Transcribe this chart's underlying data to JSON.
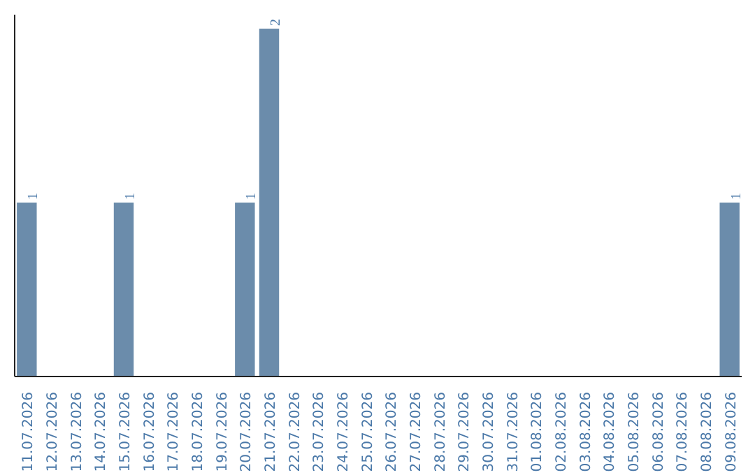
{
  "chart_data": {
    "type": "bar",
    "categories": [
      "11.07.2026",
      "12.07.2026",
      "13.07.2026",
      "14.07.2026",
      "15.07.2026",
      "16.07.2026",
      "17.07.2026",
      "18.07.2026",
      "19.07.2026",
      "20.07.2026",
      "21.07.2026",
      "22.07.2026",
      "23.07.2026",
      "24.07.2026",
      "25.07.2026",
      "26.07.2026",
      "27.07.2026",
      "28.07.2026",
      "29.07.2026",
      "30.07.2026",
      "31.07.2026",
      "01.08.2026",
      "02.08.2026",
      "03.08.2026",
      "04.08.2026",
      "05.08.2026",
      "06.08.2026",
      "07.08.2026",
      "08.08.2026",
      "09.08.2026"
    ],
    "values": [
      1,
      0,
      0,
      0,
      1,
      0,
      0,
      0,
      0,
      1,
      2,
      0,
      0,
      0,
      0,
      0,
      0,
      0,
      0,
      0,
      0,
      0,
      0,
      0,
      0,
      0,
      0,
      0,
      0,
      1
    ],
    "value_labels": [
      "1",
      null,
      null,
      null,
      "1",
      null,
      null,
      null,
      null,
      "1",
      "2",
      null,
      null,
      null,
      null,
      null,
      null,
      null,
      null,
      null,
      null,
      null,
      null,
      null,
      null,
      null,
      null,
      null,
      null,
      "1"
    ],
    "color": "#6b8cab",
    "grid": false,
    "tick_labels": "x"
  }
}
